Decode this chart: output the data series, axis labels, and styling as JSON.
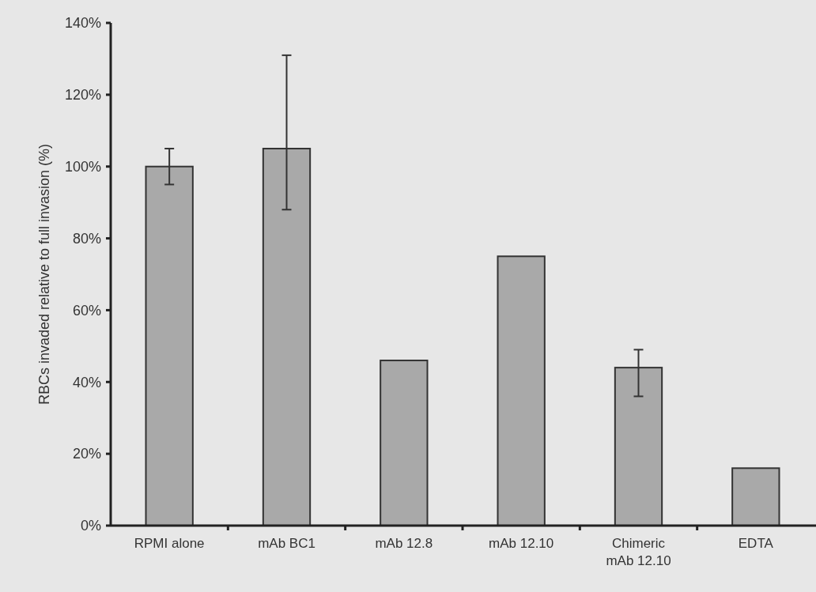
{
  "chart_data": {
    "type": "bar",
    "ylabel": "RBCs invaded relative to full invasion (%)",
    "categories": [
      "RPMI alone",
      "mAb BC1",
      "mAb 12.8",
      "mAb 12.10",
      "Chimeric\nmAb 12.10",
      "EDTA"
    ],
    "values": [
      100,
      105,
      46,
      75,
      44,
      16
    ],
    "errors": [
      [
        95,
        105
      ],
      [
        88,
        131
      ],
      null,
      null,
      [
        36,
        49
      ],
      null
    ],
    "color": "#a9a9a9",
    "ylim": [
      0,
      140
    ],
    "yticks": [
      {
        "value": 0,
        "label": "0%"
      },
      {
        "value": 20,
        "label": "20%"
      },
      {
        "value": 40,
        "label": "40%"
      },
      {
        "value": 60,
        "label": "60%"
      },
      {
        "value": 80,
        "label": "80%"
      },
      {
        "value": 100,
        "label": "100%"
      },
      {
        "value": 120,
        "label": "120%"
      },
      {
        "value": 140,
        "label": "140%"
      }
    ],
    "grid": false
  }
}
